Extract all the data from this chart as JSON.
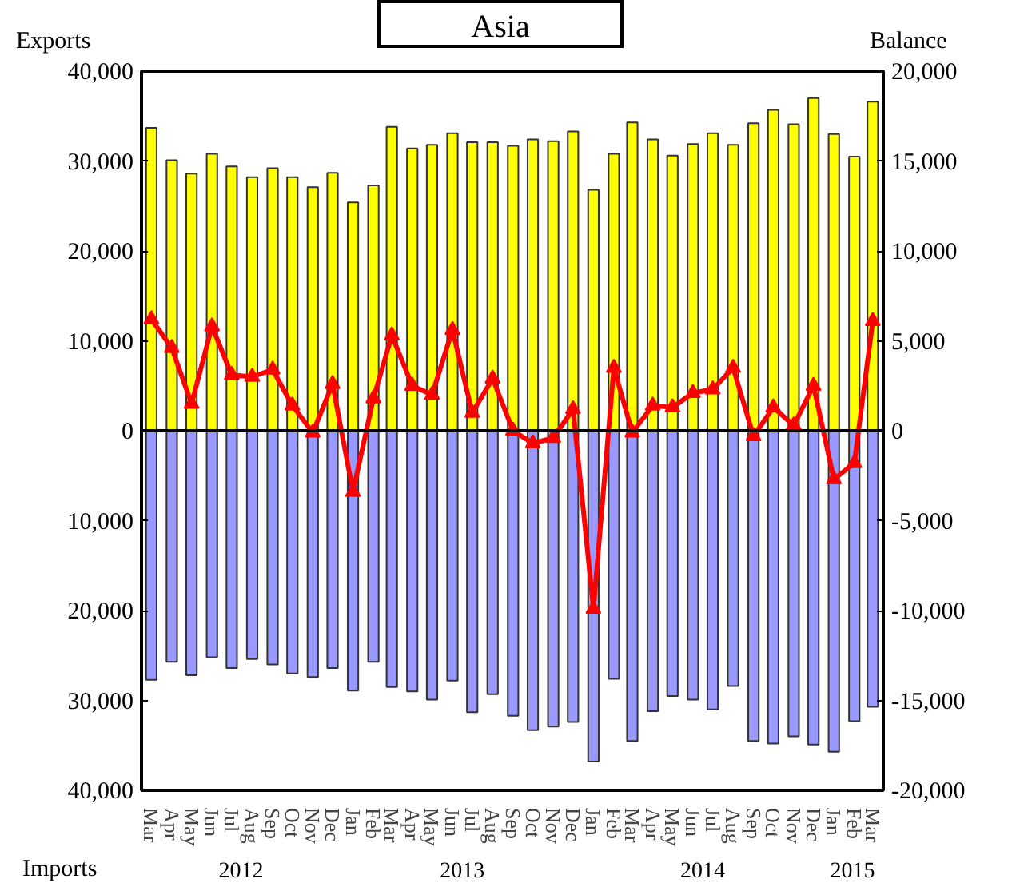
{
  "chart_data": {
    "type": "bar",
    "title": "Asia",
    "ylabel": "Exports",
    "y2label": "Balance",
    "annotations": [
      "Imports",
      "2012",
      "2013",
      "2014",
      "2015"
    ],
    "x": [
      "2012-03",
      "2012-04",
      "2012-05",
      "2012-06",
      "2012-07",
      "2012-08",
      "2012-09",
      "2012-10",
      "2012-11",
      "2012-12",
      "2013-01",
      "2013-02",
      "2013-03",
      "2013-04",
      "2013-05",
      "2013-06",
      "2013-07",
      "2013-08",
      "2013-09",
      "2013-10",
      "2013-11",
      "2013-12",
      "2014-01",
      "2014-02",
      "2014-03",
      "2014-04",
      "2014-05",
      "2014-06",
      "2014-07",
      "2014-08",
      "2014-09",
      "2014-10",
      "2014-11",
      "2014-12",
      "2015-01",
      "2015-02",
      "2015-03"
    ],
    "series": [
      {
        "color": "#ffff00",
        "values": [
          33700,
          30100,
          28600,
          30800,
          29400,
          28200,
          29200,
          28200,
          27100,
          28700,
          25400,
          27300,
          33800,
          31400,
          31800,
          33100,
          32100,
          32100,
          31700,
          32400,
          32200,
          33300,
          26800,
          30800,
          34300,
          32400,
          30600,
          31900,
          33100,
          31800,
          34200,
          35700,
          34100,
          37000,
          33000,
          30500,
          36600
        ]
      },
      {
        "color": "#9999ff",
        "values": [
          -27700,
          -25700,
          -27200,
          -25200,
          -26400,
          -25400,
          -26000,
          -27000,
          -27400,
          -26400,
          -28900,
          -25700,
          -28500,
          -29000,
          -29900,
          -27800,
          -31300,
          -29300,
          -31700,
          -33300,
          -32900,
          -32400,
          -36800,
          -27600,
          -34500,
          -31200,
          -29500,
          -29900,
          -31000,
          -28400,
          -34500,
          -34800,
          -34000,
          -34900,
          -35700,
          -32300,
          -30700
        ]
      },
      {
        "type": "line",
        "axis": "y2",
        "color": "#ff0000",
        "marker": "triangle",
        "values": [
          6200,
          4600,
          1500,
          5800,
          3100,
          3000,
          3400,
          1400,
          -100,
          2600,
          -3400,
          1800,
          5300,
          2500,
          2000,
          5600,
          1000,
          2900,
          0,
          -700,
          -400,
          1200,
          -9900,
          3500,
          -100,
          1400,
          1300,
          2100,
          2300,
          3500,
          -300,
          1300,
          300,
          2500,
          -2700,
          -1800,
          6100
        ]
      }
    ],
    "xlim": [
      "2012-02-15",
      "2015-03-17"
    ],
    "xticks": [
      {
        "value": "2012-03",
        "label": "Mar"
      },
      {
        "value": "2012-04",
        "label": "Apr"
      },
      {
        "value": "2012-05",
        "label": "May"
      },
      {
        "value": "2012-06",
        "label": "Jun"
      },
      {
        "value": "2012-07",
        "label": "Jul"
      },
      {
        "value": "2012-08",
        "label": "Aug"
      },
      {
        "value": "2012-09",
        "label": "Sep"
      },
      {
        "value": "2012-10",
        "label": "Oct"
      },
      {
        "value": "2012-11",
        "label": "Nov"
      },
      {
        "value": "2012-12",
        "label": "Dec"
      },
      {
        "value": "2013-01",
        "label": "Jan"
      },
      {
        "value": "2013-02",
        "label": "Feb"
      },
      {
        "value": "2013-03",
        "label": "Mar"
      },
      {
        "value": "2013-04",
        "label": "Apr"
      },
      {
        "value": "2013-05",
        "label": "May"
      },
      {
        "value": "2013-06",
        "label": "Jun"
      },
      {
        "value": "2013-07",
        "label": "Jul"
      },
      {
        "value": "2013-08",
        "label": "Aug"
      },
      {
        "value": "2013-09",
        "label": "Sep"
      },
      {
        "value": "2013-10",
        "label": "Oct"
      },
      {
        "value": "2013-11",
        "label": "Nov"
      },
      {
        "value": "2013-12",
        "label": "Dec"
      },
      {
        "value": "2014-01",
        "label": "Jan"
      },
      {
        "value": "2014-02",
        "label": "Feb"
      },
      {
        "value": "2014-03",
        "label": "Mar"
      },
      {
        "value": "2014-04",
        "label": "Apr"
      },
      {
        "value": "2014-05",
        "label": "May"
      },
      {
        "value": "2014-06",
        "label": "Jun"
      },
      {
        "value": "2014-07",
        "label": "Jul"
      },
      {
        "value": "2014-08",
        "label": "Aug"
      },
      {
        "value": "2014-09",
        "label": "Sep"
      },
      {
        "value": "2014-10",
        "label": "Oct"
      },
      {
        "value": "2014-11",
        "label": "Nov"
      },
      {
        "value": "2014-12",
        "label": "Dec"
      },
      {
        "value": "2015-01",
        "label": "Jan"
      },
      {
        "value": "2015-02",
        "label": "Feb"
      },
      {
        "value": "2015-03",
        "label": "Mar"
      }
    ],
    "ylim": [
      -40000,
      40000
    ],
    "yticks": [
      {
        "value": 40000,
        "label": "40,000"
      },
      {
        "value": 30000,
        "label": "30,000"
      },
      {
        "value": 20000,
        "label": "20,000"
      },
      {
        "value": 10000,
        "label": "10,000"
      },
      0,
      {
        "value": -10000,
        "label": "10,000"
      },
      {
        "value": -20000,
        "label": "20,000"
      },
      {
        "value": -30000,
        "label": "30,000"
      },
      {
        "value": -40000,
        "label": "40,000"
      }
    ],
    "y2lim": [
      -20000,
      20000
    ],
    "y2ticks": [
      {
        "value": 20000,
        "label": "20,000"
      },
      {
        "value": 15000,
        "label": "15,000"
      },
      {
        "value": 10000,
        "label": "10,000"
      },
      {
        "value": 5000,
        "label": "5,000"
      },
      0,
      {
        "value": -5000,
        "label": "-5,000"
      },
      {
        "value": -10000,
        "label": "-10,000"
      },
      {
        "value": -15000,
        "label": "-15,000"
      },
      {
        "value": -20000,
        "label": "-20,000"
      }
    ],
    "ref_lines": [
      {
        "axis": "y",
        "value": 0,
        "color": "#000000"
      }
    ],
    "stacked": true,
    "grid": false
  }
}
